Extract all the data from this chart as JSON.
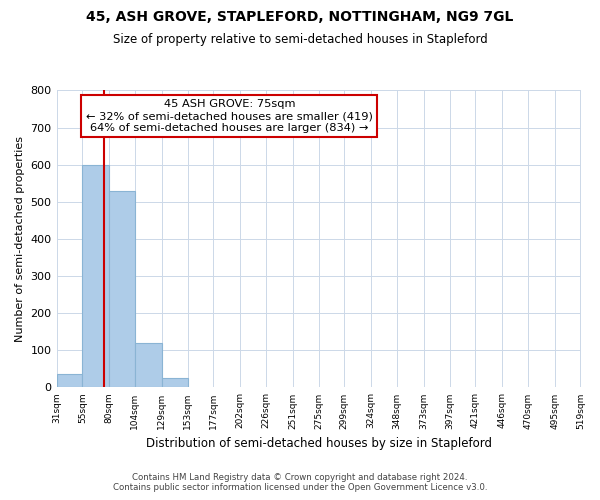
{
  "title1": "45, ASH GROVE, STAPLEFORD, NOTTINGHAM, NG9 7GL",
  "title2": "Size of property relative to semi-detached houses in Stapleford",
  "xlabel": "Distribution of semi-detached houses by size in Stapleford",
  "ylabel": "Number of semi-detached properties",
  "bins": [
    31,
    55,
    80,
    104,
    129,
    153,
    177,
    202,
    226,
    251,
    275,
    299,
    324,
    348,
    373,
    397,
    421,
    446,
    470,
    495,
    519
  ],
  "bin_labels": [
    "31sqm",
    "55sqm",
    "80sqm",
    "104sqm",
    "129sqm",
    "153sqm",
    "177sqm",
    "202sqm",
    "226sqm",
    "251sqm",
    "275sqm",
    "299sqm",
    "324sqm",
    "348sqm",
    "373sqm",
    "397sqm",
    "421sqm",
    "446sqm",
    "470sqm",
    "495sqm",
    "519sqm"
  ],
  "bar_heights": [
    35,
    600,
    530,
    120,
    25,
    0,
    0,
    0,
    0,
    0,
    0,
    0,
    0,
    0,
    0,
    0,
    0,
    0,
    0,
    0
  ],
  "bar_color": "#aecce8",
  "bar_edge_color": "#8ab4d4",
  "property_line_x": 75,
  "property_line_color": "#cc0000",
  "ylim": [
    0,
    800
  ],
  "yticks": [
    0,
    100,
    200,
    300,
    400,
    500,
    600,
    700,
    800
  ],
  "ann_title": "45 ASH GROVE: 75sqm",
  "ann_line2": "← 32% of semi-detached houses are smaller (419)",
  "ann_line3": "64% of semi-detached houses are larger (834) →",
  "background_color": "#ffffff",
  "grid_color": "#ccd8e8",
  "footer_line1": "Contains HM Land Registry data © Crown copyright and database right 2024.",
  "footer_line2": "Contains public sector information licensed under the Open Government Licence v3.0."
}
